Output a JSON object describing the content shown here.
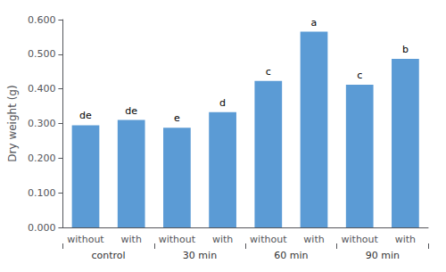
{
  "chart_data": {
    "type": "bar",
    "categories": [
      "control",
      "30 min",
      "60 min",
      "90 min"
    ],
    "subcategories": [
      "without",
      "with"
    ],
    "values": [
      [
        0.295,
        0.31
      ],
      [
        0.288,
        0.333
      ],
      [
        0.423,
        0.565
      ],
      [
        0.412,
        0.487
      ]
    ],
    "annotations": [
      [
        "de",
        "de"
      ],
      [
        "e",
        "d"
      ],
      [
        "c",
        "a"
      ],
      [
        "c",
        "b"
      ]
    ],
    "color": "#5B9BD5",
    "ylabel": "Dry weight (g)",
    "ylim": [
      0.0,
      0.6
    ],
    "yticks": [
      {
        "value": 0.0,
        "label": "0.000"
      },
      {
        "value": 0.1,
        "label": "0.100"
      },
      {
        "value": 0.2,
        "label": "0.200"
      },
      {
        "value": 0.3,
        "label": "0.300"
      },
      {
        "value": 0.4,
        "label": "0.400"
      },
      {
        "value": 0.5,
        "label": "0.500"
      },
      {
        "value": 0.6,
        "label": "0.600"
      }
    ],
    "grid": false
  }
}
